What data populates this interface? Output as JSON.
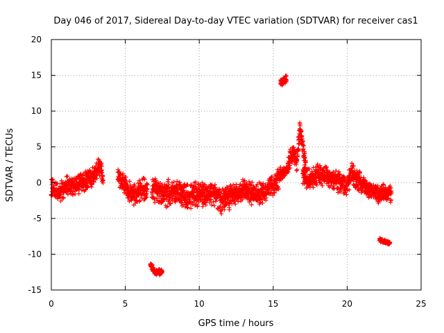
{
  "chart_data": {
    "type": "scatter",
    "title": "Day 046 of 2017, Sidereal Day-to-day VTEC variation (SDTVAR) for receiver cas1",
    "xlabel": "GPS time / hours",
    "ylabel": "SDTVAR / TECUs",
    "xlim": [
      0,
      25
    ],
    "ylim": [
      -15,
      20
    ],
    "xticks": [
      0,
      5,
      10,
      15,
      20,
      25
    ],
    "yticks": [
      -15,
      -10,
      -5,
      0,
      5,
      10,
      15,
      20
    ],
    "grid": true,
    "marker": "+",
    "color": "#ff0000",
    "series": [
      {
        "name": "SDTVAR",
        "segments": [
          {
            "x0": 0.0,
            "x1": 3.5,
            "profile": [
              [
                0.0,
                -0.5
              ],
              [
                0.5,
                -1.5
              ],
              [
                1.0,
                -0.5
              ],
              [
                1.5,
                -0.5
              ],
              [
                2.0,
                0.0
              ],
              [
                2.5,
                0.5
              ],
              [
                3.0,
                1.5
              ],
              [
                3.3,
                2.5
              ],
              [
                3.5,
                0.0
              ]
            ],
            "spread": 1.6
          },
          {
            "x0": 4.5,
            "x1": 5.0,
            "profile": [
              [
                4.5,
                1.0
              ],
              [
                5.0,
                -0.5
              ]
            ],
            "spread": 1.4
          },
          {
            "x0": 5.0,
            "x1": 6.5,
            "profile": [
              [
                5.0,
                -0.5
              ],
              [
                5.5,
                -1.5
              ],
              [
                6.0,
                -1.0
              ],
              [
                6.5,
                -0.5
              ]
            ],
            "spread": 1.8
          },
          {
            "x0": 6.7,
            "x1": 7.5,
            "profile": [
              [
                6.7,
                -11.5
              ],
              [
                7.0,
                -12.5
              ],
              [
                7.5,
                -12.5
              ]
            ],
            "spread": 0.5
          },
          {
            "x0": 6.8,
            "x1": 9.0,
            "profile": [
              [
                6.8,
                -1.0
              ],
              [
                7.5,
                -1.5
              ],
              [
                8.0,
                -1.5
              ],
              [
                8.5,
                -1.0
              ],
              [
                9.0,
                -2.0
              ]
            ],
            "spread": 2.0
          },
          {
            "x0": 9.0,
            "x1": 12.5,
            "profile": [
              [
                9.0,
                -2.0
              ],
              [
                10.0,
                -1.5
              ],
              [
                10.5,
                -2.0
              ],
              [
                11.0,
                -1.5
              ],
              [
                11.5,
                -2.5
              ],
              [
                12.0,
                -2.0
              ],
              [
                12.5,
                -1.5
              ]
            ],
            "spread": 2.0
          },
          {
            "x0": 12.5,
            "x1": 15.5,
            "profile": [
              [
                12.5,
                -1.5
              ],
              [
                13.0,
                -1.0
              ],
              [
                13.5,
                -1.5
              ],
              [
                14.0,
                -1.5
              ],
              [
                14.5,
                -1.0
              ],
              [
                15.0,
                -0.5
              ],
              [
                15.5,
                1.0
              ]
            ],
            "spread": 1.8
          },
          {
            "x0": 15.5,
            "x1": 15.9,
            "profile": [
              [
                15.5,
                14.0
              ],
              [
                15.9,
                14.5
              ]
            ],
            "spread": 0.6
          },
          {
            "x0": 15.5,
            "x1": 16.0,
            "profile": [
              [
                15.5,
                1.0
              ],
              [
                16.0,
                2.0
              ]
            ],
            "spread": 0.8
          },
          {
            "x0": 16.0,
            "x1": 17.2,
            "profile": [
              [
                16.0,
                2.5
              ],
              [
                16.3,
                4.0
              ],
              [
                16.6,
                3.0
              ],
              [
                16.8,
                7.5
              ],
              [
                17.0,
                5.5
              ],
              [
                17.2,
                2.0
              ]
            ],
            "spread": 1.6
          },
          {
            "x0": 17.0,
            "x1": 19.5,
            "profile": [
              [
                17.0,
                1.0
              ],
              [
                17.5,
                0.5
              ],
              [
                18.0,
                1.0
              ],
              [
                18.5,
                1.0
              ],
              [
                19.0,
                0.5
              ],
              [
                19.5,
                0.0
              ]
            ],
            "spread": 1.6
          },
          {
            "x0": 19.5,
            "x1": 21.2,
            "profile": [
              [
                19.5,
                0.0
              ],
              [
                20.0,
                -0.5
              ],
              [
                20.3,
                1.5
              ],
              [
                20.6,
                0.5
              ],
              [
                21.2,
                -0.5
              ]
            ],
            "spread": 1.6
          },
          {
            "x0": 21.2,
            "x1": 23.0,
            "profile": [
              [
                21.2,
                -0.5
              ],
              [
                22.0,
                -1.5
              ],
              [
                23.0,
                -1.5
              ]
            ],
            "spread": 1.4
          },
          {
            "x0": 22.2,
            "x1": 22.9,
            "profile": [
              [
                22.2,
                -8.0
              ],
              [
                22.9,
                -8.5
              ]
            ],
            "spread": 0.3
          }
        ]
      }
    ]
  }
}
